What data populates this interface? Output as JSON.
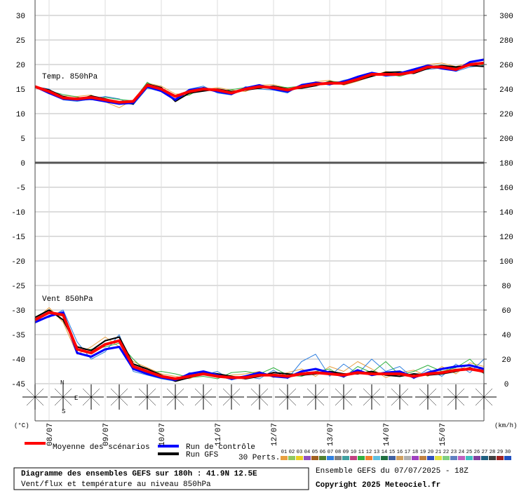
{
  "chart_data": {
    "type": "line",
    "temp_label": "Temp. 850hPa",
    "wind_label": "Vent 850hPa",
    "y_unit": "(°C)",
    "y2_unit": "(km/h)",
    "x": [
      0,
      6,
      12,
      18,
      24,
      30,
      36,
      42,
      48,
      54,
      60,
      66,
      72,
      78,
      84,
      90,
      96,
      102,
      108,
      114,
      120,
      126,
      132,
      138,
      144,
      150,
      156,
      162,
      168,
      174,
      180,
      186,
      192
    ],
    "xlim": [
      0,
      192
    ],
    "xticks": [
      {
        "value": 6,
        "label": "08/07"
      },
      {
        "value": 30,
        "label": "09/07"
      },
      {
        "value": 54,
        "label": "10/07"
      },
      {
        "value": 78,
        "label": "11/07"
      },
      {
        "value": 102,
        "label": "12/07"
      },
      {
        "value": 126,
        "label": "13/07"
      },
      {
        "value": 150,
        "label": "14/07"
      },
      {
        "value": 174,
        "label": "15/07"
      }
    ],
    "ylim": [
      -45,
      33
    ],
    "yticks": [
      -45,
      -40,
      -35,
      -30,
      -25,
      -20,
      -15,
      -10,
      -5,
      0,
      5,
      10,
      15,
      20,
      25,
      30
    ],
    "y2lim": [
      0,
      312
    ],
    "y2ticks": [
      0,
      20,
      40,
      60,
      80,
      100,
      120,
      140,
      160,
      180,
      200,
      220,
      240,
      260,
      280,
      300
    ],
    "grid": true,
    "series": [
      {
        "name": "Moyenne des scénarios",
        "color": "#ff0000",
        "values": [
          15.5,
          14.5,
          13.2,
          13,
          13.3,
          12.8,
          12.3,
          12.5,
          15.8,
          15,
          13.5,
          14.5,
          15,
          14.8,
          14.2,
          15,
          15.5,
          15.3,
          14.8,
          15.5,
          16,
          16.2,
          16.2,
          17,
          18,
          18,
          18,
          18.5,
          19.5,
          19.5,
          19,
          20,
          20.3
        ],
        "wind": [
          52,
          58,
          56,
          28,
          25,
          32,
          35,
          14,
          10,
          6,
          4,
          6,
          8,
          6,
          5,
          5,
          7,
          7,
          6,
          8,
          9,
          8,
          7,
          9,
          8,
          8,
          8,
          6,
          8,
          9,
          11,
          12,
          10
        ]
      },
      {
        "name": "Run de contrôle",
        "color": "#0000ff",
        "values": [
          15.5,
          14.2,
          13,
          12.8,
          13,
          12.5,
          12,
          12.2,
          15.5,
          14.6,
          12.8,
          14.8,
          15.2,
          14.5,
          14,
          15.2,
          15.8,
          15,
          14.5,
          15.8,
          16.3,
          16,
          16.5,
          17.5,
          18.3,
          17.8,
          18.2,
          19,
          19.8,
          19.2,
          18.8,
          20.5,
          21
        ],
        "wind": [
          50,
          55,
          58,
          25,
          22,
          28,
          30,
          12,
          8,
          5,
          3,
          8,
          10,
          7,
          4,
          6,
          9,
          6,
          5,
          10,
          12,
          9,
          6,
          11,
          7,
          9,
          10,
          5,
          9,
          12,
          14,
          15,
          12
        ]
      },
      {
        "name": "Run GFS",
        "color": "#000000",
        "values": [
          15.5,
          14.8,
          13.5,
          12.8,
          13.6,
          13,
          12.2,
          12,
          16,
          15.3,
          12.5,
          14.2,
          14.6,
          15,
          14.5,
          14.8,
          15.2,
          15.6,
          15,
          15.2,
          15.7,
          16.5,
          16,
          16.8,
          17.6,
          18.4,
          18.5,
          18.2,
          19.2,
          19.8,
          19.5,
          19.8,
          19.6
        ],
        "wind": [
          54,
          60,
          52,
          30,
          27,
          35,
          38,
          16,
          12,
          7,
          2,
          5,
          9,
          8,
          6,
          4,
          6,
          9,
          8,
          7,
          8,
          10,
          8,
          8,
          10,
          7,
          6,
          8,
          7,
          8,
          10,
          13,
          9
        ]
      }
    ],
    "perturbations_label": "30 Perts.",
    "perturbations": [
      {
        "label": "01",
        "color": "#e8a040",
        "values": [
          15.5,
          14,
          13.6,
          13.5,
          13.8,
          12.4,
          11.2,
          12.8,
          16.2,
          15.6,
          14,
          14,
          14.8,
          15.3,
          14.8,
          14.5,
          15.8,
          15.9,
          15.2,
          15.1,
          16.5,
          16.8,
          15.8,
          16.6,
          17.6,
          18.6,
          18.3,
          18.9,
          20,
          20.3,
          19.6,
          20.4,
          21.2
        ],
        "wind": [
          52,
          62,
          50,
          24,
          30,
          38,
          30,
          18,
          13,
          8,
          6,
          4,
          9,
          5,
          7,
          8,
          10,
          5,
          9,
          12,
          6,
          14,
          10,
          18,
          12,
          5,
          9,
          11,
          6,
          14,
          8,
          17,
          14
        ]
      },
      {
        "label": "02",
        "color": "#90c860"
      },
      {
        "label": "03",
        "color": "#e8d020"
      },
      {
        "label": "04",
        "color": "#9050c0"
      },
      {
        "label": "05",
        "color": "#a06020"
      },
      {
        "label": "06",
        "color": "#508030"
      },
      {
        "label": "07",
        "color": "#3080e0",
        "values": [
          15.5,
          15,
          12.8,
          12.5,
          13,
          13.5,
          13,
          11.8,
          15.2,
          14.5,
          13,
          15,
          15.6,
          14.2,
          13.8,
          15.5,
          15,
          14.8,
          14.2,
          16,
          16.4,
          15.8,
          16.8,
          17.3,
          18.4,
          17.6,
          17.8,
          18.8,
          19,
          19.3,
          18.6,
          19.5,
          19.8
        ],
        "wind": [
          52,
          54,
          60,
          34,
          20,
          26,
          40,
          10,
          7,
          4,
          2,
          9,
          7,
          10,
          3,
          6,
          4,
          11,
          4,
          18,
          24,
          6,
          16,
          8,
          20,
          10,
          14,
          4,
          12,
          6,
          16,
          9,
          20
        ]
      },
      {
        "label": "08",
        "color": "#808080"
      },
      {
        "label": "09",
        "color": "#40a0a0"
      },
      {
        "label": "10",
        "color": "#c04080"
      },
      {
        "label": "11",
        "color": "#30b040",
        "values": [
          15.5,
          14.6,
          13.9,
          13.4,
          12.8,
          13.3,
          12.9,
          12.6,
          16.4,
          14.7,
          13.4,
          13.8,
          15.4,
          14.4,
          14.9,
          15.3,
          15.1,
          15.6,
          15.3,
          15.6,
          15.8,
          16.6,
          16.4,
          17.2,
          17.8,
          18.2,
          17.6,
          18.4,
          19.6,
          19.9,
          19.3,
          20.2,
          19.9
        ],
        "wind": [
          52,
          57,
          55,
          27,
          28,
          30,
          33,
          20,
          9,
          10,
          8,
          5,
          6,
          4,
          9,
          10,
          8,
          13,
          7,
          6,
          10,
          12,
          5,
          14,
          9,
          18,
          7,
          10,
          15,
          10,
          13,
          20,
          8
        ]
      },
      {
        "label": "12",
        "color": "#f08030"
      },
      {
        "label": "13",
        "color": "#60c0e0"
      },
      {
        "label": "14",
        "color": "#207040"
      },
      {
        "label": "15",
        "color": "#4060a0"
      },
      {
        "label": "16",
        "color": "#d0a060"
      },
      {
        "label": "17",
        "color": "#b0b0b0"
      },
      {
        "label": "18",
        "color": "#a040c0"
      },
      {
        "label": "19",
        "color": "#c08040"
      },
      {
        "label": "20",
        "color": "#3050c0"
      },
      {
        "label": "21",
        "color": "#e0e040"
      },
      {
        "label": "22",
        "color": "#80d080"
      },
      {
        "label": "23",
        "color": "#6080c0"
      },
      {
        "label": "24",
        "color": "#c060c0"
      },
      {
        "label": "25",
        "color": "#40c0c0"
      },
      {
        "label": "26",
        "color": "#8040a0"
      },
      {
        "label": "27",
        "color": "#206080"
      },
      {
        "label": "28",
        "color": "#404040"
      },
      {
        "label": "29",
        "color": "#a02020"
      },
      {
        "label": "30",
        "color": "#2050c0"
      }
    ],
    "rose_labels": {
      "n": "N",
      "e": "E",
      "s": "S"
    },
    "footer": {
      "title": "Diagramme des ensembles GEFS sur 180h : 41.9N 12.5E",
      "subtitle": "Vent/flux et température au niveau 850hPa",
      "run": "Ensemble GEFS du 07/07/2025 - 18Z",
      "copyright": "Copyright 2025 Meteociel.fr"
    }
  }
}
